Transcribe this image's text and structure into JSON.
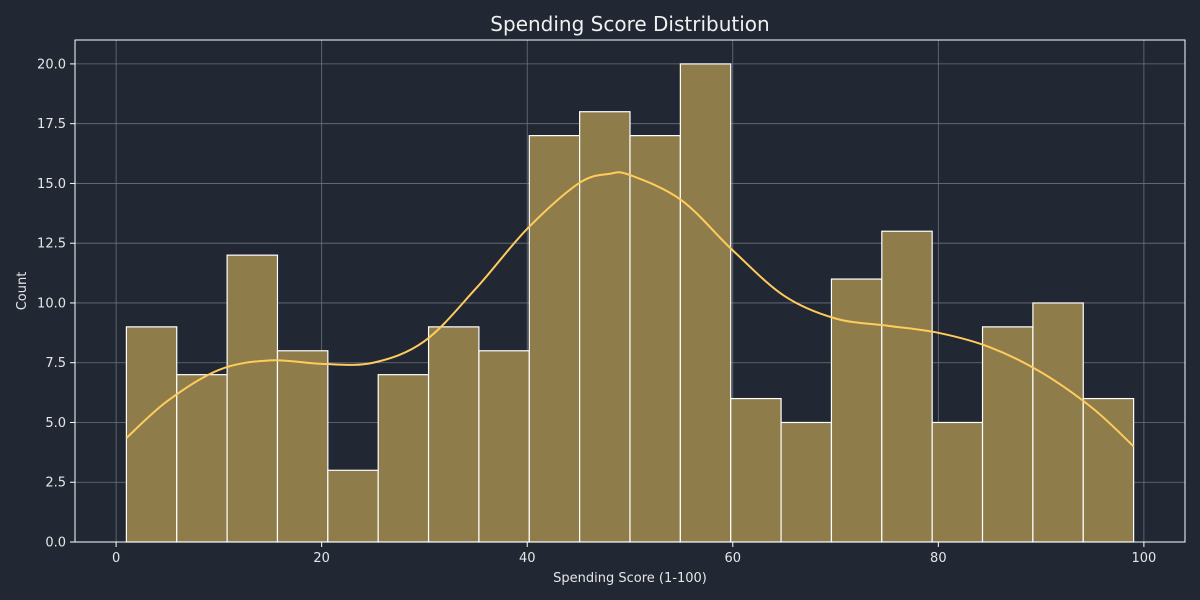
{
  "chart_data": {
    "type": "bar",
    "title": "Spending Score Distribution",
    "xlabel": "Spending Score (1-100)",
    "ylabel": "Count",
    "xlim": [
      -4,
      104
    ],
    "ylim": [
      0,
      21
    ],
    "x_ticks": [
      0,
      20,
      40,
      60,
      80,
      100
    ],
    "y_ticks": [
      "0.0",
      "2.5",
      "5.0",
      "7.5",
      "10.0",
      "12.5",
      "15.0",
      "17.5",
      "20.0"
    ],
    "bin_edges": [
      1,
      5.9,
      10.8,
      15.7,
      20.6,
      25.5,
      30.4,
      35.3,
      40.2,
      45.1,
      50.0,
      54.9,
      59.8,
      64.7,
      69.6,
      74.5,
      79.4,
      84.3,
      89.2,
      94.1,
      99.0
    ],
    "values": [
      9,
      7,
      12,
      8,
      3,
      7,
      9,
      8,
      17,
      18,
      17,
      20,
      6,
      5,
      11,
      13,
      5,
      9,
      10,
      6
    ],
    "kde": {
      "x": [
        1,
        5,
        10,
        15,
        20,
        25,
        30,
        35,
        40,
        45,
        48,
        50,
        55,
        60,
        65,
        70,
        75,
        80,
        85,
        90,
        95,
        99
      ],
      "y": [
        4.35,
        5.9,
        7.2,
        7.6,
        7.45,
        7.5,
        8.4,
        10.6,
        13.1,
        15.0,
        15.4,
        15.35,
        14.3,
        12.2,
        10.3,
        9.35,
        9.05,
        8.75,
        8.15,
        7.1,
        5.6,
        4.0
      ]
    },
    "grid": true,
    "colors": {
      "background": "#212733",
      "bar_fill": "#8e7c4b",
      "bar_edge": "#ffffff",
      "kde_line": "#ffcc5c",
      "grid": "#6c717b",
      "text": "#e6e6e6",
      "axes_edge": "#ffffff"
    }
  }
}
